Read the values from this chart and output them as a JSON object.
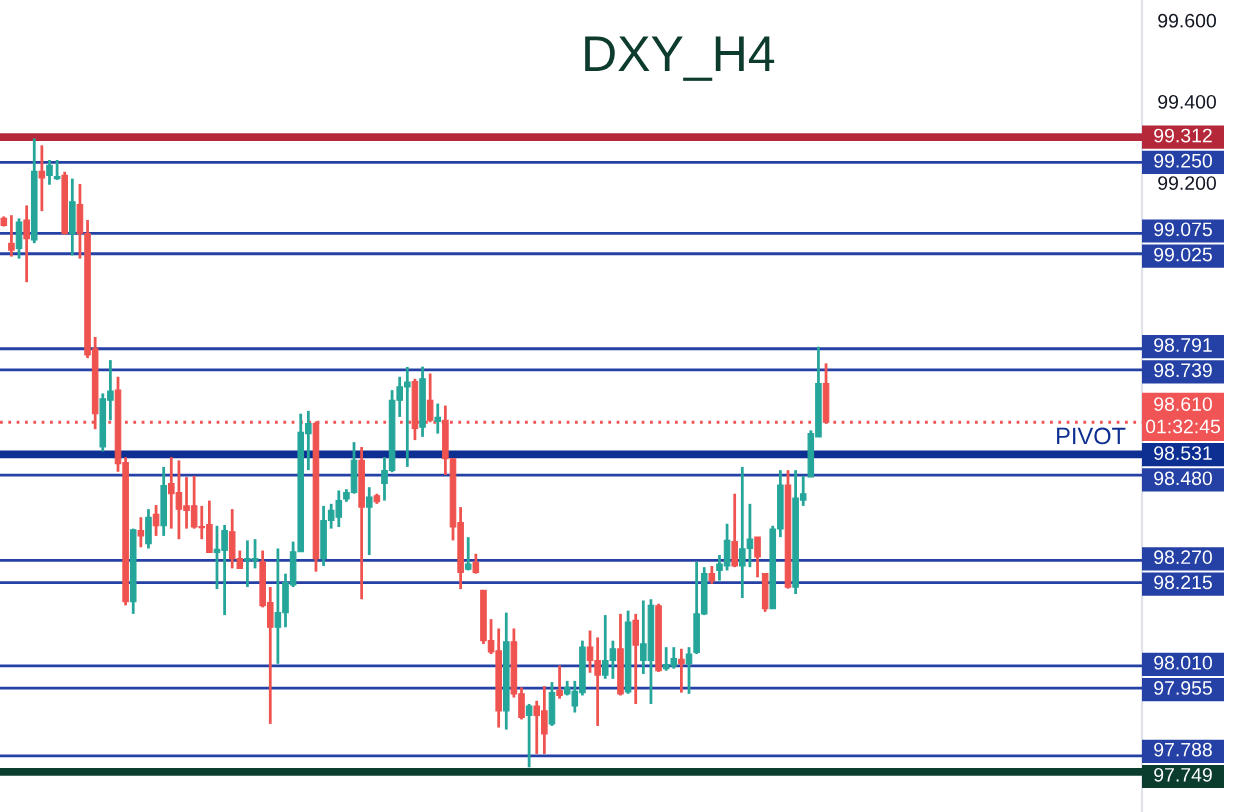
{
  "chart_data": {
    "type": "candlestick",
    "title": "DXY_H4",
    "categories": [
      null,
      null,
      null,
      null,
      null,
      null,
      null,
      null,
      null,
      null,
      null,
      null,
      null,
      null,
      null,
      null,
      null,
      null,
      null,
      null,
      null,
      null,
      null,
      null,
      null,
      null,
      null,
      null,
      null,
      null,
      null,
      null,
      null,
      null,
      null,
      null,
      null,
      null,
      null,
      null,
      null,
      null,
      null,
      null,
      null,
      null,
      null,
      null,
      null,
      null,
      null,
      null,
      null,
      null,
      null,
      null,
      null,
      null,
      null,
      null,
      null,
      null,
      null,
      null,
      null,
      null,
      null,
      null,
      null,
      null,
      null,
      null,
      null,
      null,
      null,
      null,
      null,
      null,
      null,
      null,
      null,
      null,
      null,
      null,
      null,
      null,
      null,
      null,
      null,
      null,
      null,
      null,
      null,
      null,
      null,
      null,
      null,
      null,
      null,
      null,
      null,
      null,
      null,
      null,
      null,
      null,
      null,
      null,
      null,
      null,
      null,
      null,
      null,
      null,
      null,
      null,
      null,
      null,
      null,
      null,
      null,
      null,
      null,
      null,
      null,
      null,
      null,
      null,
      null,
      null,
      null,
      null,
      null,
      null,
      null,
      null,
      null,
      null,
      null,
      null,
      null,
      null,
      null,
      null,
      null,
      null,
      null,
      null,
      null,
      null
    ],
    "ohlc": [
      [
        99.112,
        99.117,
        99.092,
        99.095
      ],
      [
        99.051,
        99.12,
        99.018,
        99.034
      ],
      [
        99.038,
        99.112,
        99.013,
        99.103
      ],
      [
        99.108,
        99.144,
        98.955,
        99.062
      ],
      [
        99.059,
        99.309,
        99.051,
        99.228
      ],
      [
        99.228,
        99.292,
        99.13,
        99.212
      ],
      [
        99.218,
        99.256,
        99.195,
        99.243
      ],
      [
        99.21,
        99.256,
        99.207,
        99.215
      ],
      [
        99.218,
        99.227,
        99.072,
        99.075
      ],
      [
        99.075,
        99.21,
        99.021,
        99.153
      ],
      [
        99.146,
        99.197,
        99.013,
        99.075
      ],
      [
        99.075,
        99.108,
        98.768,
        98.776
      ],
      [
        98.791,
        98.82,
        98.593,
        98.631
      ],
      [
        98.549,
        98.681,
        98.538,
        98.668
      ],
      [
        98.664,
        98.763,
        98.615,
        98.687
      ],
      [
        98.689,
        98.722,
        98.488,
        98.508
      ],
      [
        98.511,
        98.524,
        98.159,
        98.168
      ],
      [
        98.168,
        98.348,
        98.138,
        98.345
      ],
      [
        98.343,
        98.376,
        98.302,
        98.33
      ],
      [
        98.311,
        98.396,
        98.299,
        98.376
      ],
      [
        98.383,
        98.406,
        98.33,
        98.355
      ],
      [
        98.355,
        98.5,
        98.33,
        98.454
      ],
      [
        98.459,
        98.524,
        98.348,
        98.434
      ],
      [
        98.437,
        98.516,
        98.322,
        98.396
      ],
      [
        98.404,
        98.475,
        98.348,
        98.393
      ],
      [
        98.404,
        98.478,
        98.348,
        98.352
      ],
      [
        98.353,
        98.404,
        98.322,
        98.35
      ],
      [
        98.358,
        98.417,
        98.289,
        98.289
      ],
      [
        98.289,
        98.355,
        98.199,
        98.297
      ],
      [
        98.294,
        98.357,
        98.135,
        98.343
      ],
      [
        98.34,
        98.396,
        98.25,
        98.274
      ],
      [
        98.274,
        98.294,
        98.25,
        98.25
      ],
      [
        98.27,
        98.319,
        98.204,
        98.274
      ],
      [
        98.27,
        98.322,
        98.25,
        98.274
      ],
      [
        98.266,
        98.294,
        98.154,
        98.158
      ],
      [
        98.166,
        98.204,
        97.867,
        98.105
      ],
      [
        98.105,
        98.299,
        98.015,
        98.141
      ],
      [
        98.141,
        98.237,
        98.105,
        98.215
      ],
      [
        98.209,
        98.316,
        98.204,
        98.291
      ],
      [
        98.291,
        98.631,
        98.291,
        98.585
      ],
      [
        98.582,
        98.638,
        98.492,
        98.607
      ],
      [
        98.607,
        98.612,
        98.242,
        98.274
      ],
      [
        98.274,
        98.404,
        98.256,
        98.368
      ],
      [
        98.368,
        98.409,
        98.348,
        98.393
      ],
      [
        98.376,
        98.442,
        98.352,
        98.417
      ],
      [
        98.421,
        98.445,
        98.414,
        98.437
      ],
      [
        98.437,
        98.561,
        98.434,
        98.516
      ],
      [
        98.516,
        98.549,
        98.174,
        98.401
      ],
      [
        98.401,
        98.45,
        98.283,
        98.426
      ],
      [
        98.429,
        98.434,
        98.409,
        98.414
      ],
      [
        98.459,
        98.524,
        98.417,
        98.491
      ],
      [
        98.491,
        98.689,
        98.487,
        98.664
      ],
      [
        98.664,
        98.722,
        98.623,
        98.697
      ],
      [
        98.697,
        98.746,
        98.5,
        98.709
      ],
      [
        98.71,
        98.717,
        98.566,
        98.595
      ],
      [
        98.598,
        98.747,
        98.574,
        98.717
      ],
      [
        98.664,
        98.73,
        98.61,
        98.615
      ],
      [
        98.612,
        98.656,
        98.582,
        98.622
      ],
      [
        98.615,
        98.651,
        98.48,
        98.52
      ],
      [
        98.52,
        98.521,
        98.319,
        98.352
      ],
      [
        98.363,
        98.401,
        98.199,
        98.24
      ],
      [
        98.248,
        98.327,
        98.245,
        98.261
      ],
      [
        98.265,
        98.286,
        98.237,
        98.24
      ],
      [
        98.196,
        98.196,
        98.064,
        98.072
      ],
      [
        98.072,
        98.125,
        98.039,
        98.044
      ],
      [
        98.047,
        98.102,
        97.858,
        97.899
      ],
      [
        97.899,
        98.141,
        97.853,
        98.069
      ],
      [
        98.069,
        98.102,
        97.932,
        97.941
      ],
      [
        97.941,
        97.957,
        97.878,
        97.883
      ],
      [
        97.888,
        97.916,
        97.76,
        97.911
      ],
      [
        97.911,
        97.924,
        97.793,
        97.888
      ],
      [
        97.899,
        97.96,
        97.793,
        97.842
      ],
      [
        97.867,
        97.97,
        97.862,
        97.944
      ],
      [
        97.949,
        98.011,
        97.929,
        97.937
      ],
      [
        97.941,
        97.973,
        97.937,
        97.957
      ],
      [
        97.911,
        97.973,
        97.895,
        97.947
      ],
      [
        97.944,
        98.072,
        97.937,
        98.056
      ],
      [
        98.056,
        98.097,
        97.993,
        98.023
      ],
      [
        98.023,
        98.08,
        97.862,
        97.987
      ],
      [
        97.987,
        98.135,
        97.978,
        98.023
      ],
      [
        98.023,
        98.072,
        97.978,
        98.052
      ],
      [
        98.052,
        98.138,
        97.937,
        97.941
      ],
      [
        97.946,
        98.146,
        97.941,
        98.118
      ],
      [
        98.122,
        98.138,
        97.916,
        98.061
      ],
      [
        98.023,
        98.171,
        97.99,
        98.064
      ],
      [
        98.023,
        98.174,
        97.916,
        98.159
      ],
      [
        98.158,
        98.163,
        97.995,
        97.998
      ],
      [
        98.003,
        98.056,
        97.998,
        98.013
      ],
      [
        98.01,
        98.056,
        98.003,
        98.028
      ],
      [
        98.026,
        98.052,
        97.944,
        98.015
      ],
      [
        98.015,
        98.056,
        97.941,
        98.039
      ],
      [
        98.043,
        98.266,
        98.039,
        98.138
      ],
      [
        98.138,
        98.253,
        98.135,
        98.237
      ],
      [
        98.237,
        98.256,
        98.212,
        98.22
      ],
      [
        98.245,
        98.283,
        98.22,
        98.261
      ],
      [
        98.256,
        98.36,
        98.245,
        98.319
      ],
      [
        98.316,
        98.434,
        98.253,
        98.256
      ],
      [
        98.256,
        98.5,
        98.177,
        98.298
      ],
      [
        98.299,
        98.409,
        98.253,
        98.322
      ],
      [
        98.327,
        98.327,
        98.228,
        98.278
      ],
      [
        98.237,
        98.237,
        98.143,
        98.151
      ],
      [
        98.151,
        98.355,
        98.151,
        98.347
      ],
      [
        98.347,
        98.492,
        98.327,
        98.455
      ],
      [
        98.455,
        98.492,
        98.2,
        98.204
      ],
      [
        98.204,
        98.492,
        98.187,
        98.423
      ],
      [
        98.418,
        98.478,
        98.404,
        98.434
      ],
      [
        98.475,
        98.59,
        98.475,
        98.582
      ],
      [
        98.574,
        98.796,
        98.574,
        98.705
      ],
      [
        98.705,
        98.755,
        98.607,
        98.61
      ],
      null,
      null,
      null,
      null,
      null,
      null,
      null,
      null,
      null,
      null,
      null,
      null,
      null,
      null,
      null,
      null,
      null,
      null,
      null,
      null,
      null,
      null,
      null,
      null,
      null,
      null,
      null,
      null,
      null,
      null,
      null,
      null,
      null,
      null,
      null,
      null,
      null,
      null,
      null,
      null,
      null
    ],
    "colors": [
      "#ef5350",
      "#ef5350",
      "#26a69a",
      "#ef5350",
      "#26a69a",
      "#ef5350",
      "#26a69a",
      "#26a69a",
      "#ef5350",
      "#26a69a",
      "#ef5350",
      "#ef5350",
      "#ef5350",
      "#26a69a",
      "#26a69a",
      "#ef5350",
      "#ef5350",
      "#26a69a",
      "#ef5350",
      "#26a69a",
      "#ef5350",
      "#26a69a",
      "#ef5350",
      "#ef5350",
      "#ef5350",
      "#ef5350",
      "#ef5350",
      "#ef5350",
      "#26a69a",
      "#26a69a",
      "#ef5350",
      "#ef5350",
      "#26a69a",
      "#26a69a",
      "#ef5350",
      "#ef5350",
      "#26a69a",
      "#26a69a",
      "#26a69a",
      "#26a69a",
      "#26a69a",
      "#ef5350",
      "#26a69a",
      "#26a69a",
      "#26a69a",
      "#26a69a",
      "#26a69a",
      "#ef5350",
      "#26a69a",
      "#ef5350",
      "#26a69a",
      "#26a69a",
      "#26a69a",
      "#26a69a",
      "#ef5350",
      "#26a69a",
      "#ef5350",
      "#26a69a",
      "#ef5350",
      "#ef5350",
      "#ef5350",
      "#26a69a",
      "#ef5350",
      "#ef5350",
      "#ef5350",
      "#ef5350",
      "#26a69a",
      "#ef5350",
      "#ef5350",
      "#26a69a",
      "#ef5350",
      "#ef5350",
      "#26a69a",
      "#ef5350",
      "#26a69a",
      "#26a69a",
      "#26a69a",
      "#ef5350",
      "#ef5350",
      "#26a69a",
      "#26a69a",
      "#ef5350",
      "#26a69a",
      "#ef5350",
      "#26a69a",
      "#26a69a",
      "#ef5350",
      "#26a69a",
      "#26a69a",
      "#ef5350",
      "#26a69a",
      "#26a69a",
      "#26a69a",
      "#ef5350",
      "#26a69a",
      "#26a69a",
      "#ef5350",
      "#26a69a",
      "#26a69a",
      "#ef5350",
      "#ef5350",
      "#26a69a",
      "#26a69a",
      "#ef5350",
      "#26a69a",
      "#26a69a",
      "#26a69a",
      "#26a69a",
      "#ef5350",
      null,
      null,
      null,
      null,
      null,
      null,
      null,
      null,
      null,
      null,
      null,
      null,
      null,
      null,
      null,
      null,
      null,
      null,
      null,
      null,
      null,
      null,
      null,
      null,
      null,
      null,
      null,
      null,
      null,
      null,
      null,
      null,
      null,
      null,
      null,
      null,
      null,
      null,
      null,
      null,
      null
    ],
    "ylim": [
      97.65,
      99.65
    ],
    "yticks": [
      {
        "value": 99.2,
        "label": "99.200"
      },
      {
        "value": 99.4,
        "label": "99.400"
      },
      {
        "value": 99.6,
        "label": "99.600"
      }
    ],
    "tick_labels": "y",
    "ref_lines": [
      {
        "axis": "y",
        "value": 99.312,
        "label": "99.312",
        "color": "#b5283a"
      },
      {
        "axis": "y",
        "value": 99.25,
        "label": "99.250",
        "color": "#2541a5"
      },
      {
        "axis": "y",
        "value": 99.075,
        "label": "99.075",
        "color": "#2541a5"
      },
      {
        "axis": "y",
        "value": 99.025,
        "label": "99.025",
        "color": "#2541a5"
      },
      {
        "axis": "y",
        "value": 98.791,
        "label": "98.791",
        "color": "#2541a5"
      },
      {
        "axis": "y",
        "value": 98.739,
        "label": "98.739",
        "color": "#2541a5"
      },
      {
        "axis": "y",
        "value": 98.61,
        "label": "98.610\n01:32:45",
        "color": "#f05454",
        "line_style": "dotted"
      },
      {
        "axis": "y",
        "value": 98.531,
        "label": "98.531",
        "color": "#0d2f91"
      },
      {
        "axis": "y",
        "value": 98.48,
        "label": "98.480",
        "color": "#2541a5"
      },
      {
        "axis": "y",
        "value": 98.27,
        "label": "98.270",
        "color": "#2541a5"
      },
      {
        "axis": "y",
        "value": 98.215,
        "label": "98.215",
        "color": "#2541a5"
      },
      {
        "axis": "y",
        "value": 98.01,
        "label": "98.010",
        "color": "#2541a5"
      },
      {
        "axis": "y",
        "value": 97.955,
        "label": "97.955",
        "color": "#2541a5"
      },
      {
        "axis": "y",
        "value": 97.788,
        "label": "97.788",
        "color": "#2541a5"
      },
      {
        "axis": "y",
        "value": 97.749,
        "label": "97.749",
        "color": "#0b3d2e"
      }
    ],
    "annotations": [
      "PIVOT"
    ]
  }
}
